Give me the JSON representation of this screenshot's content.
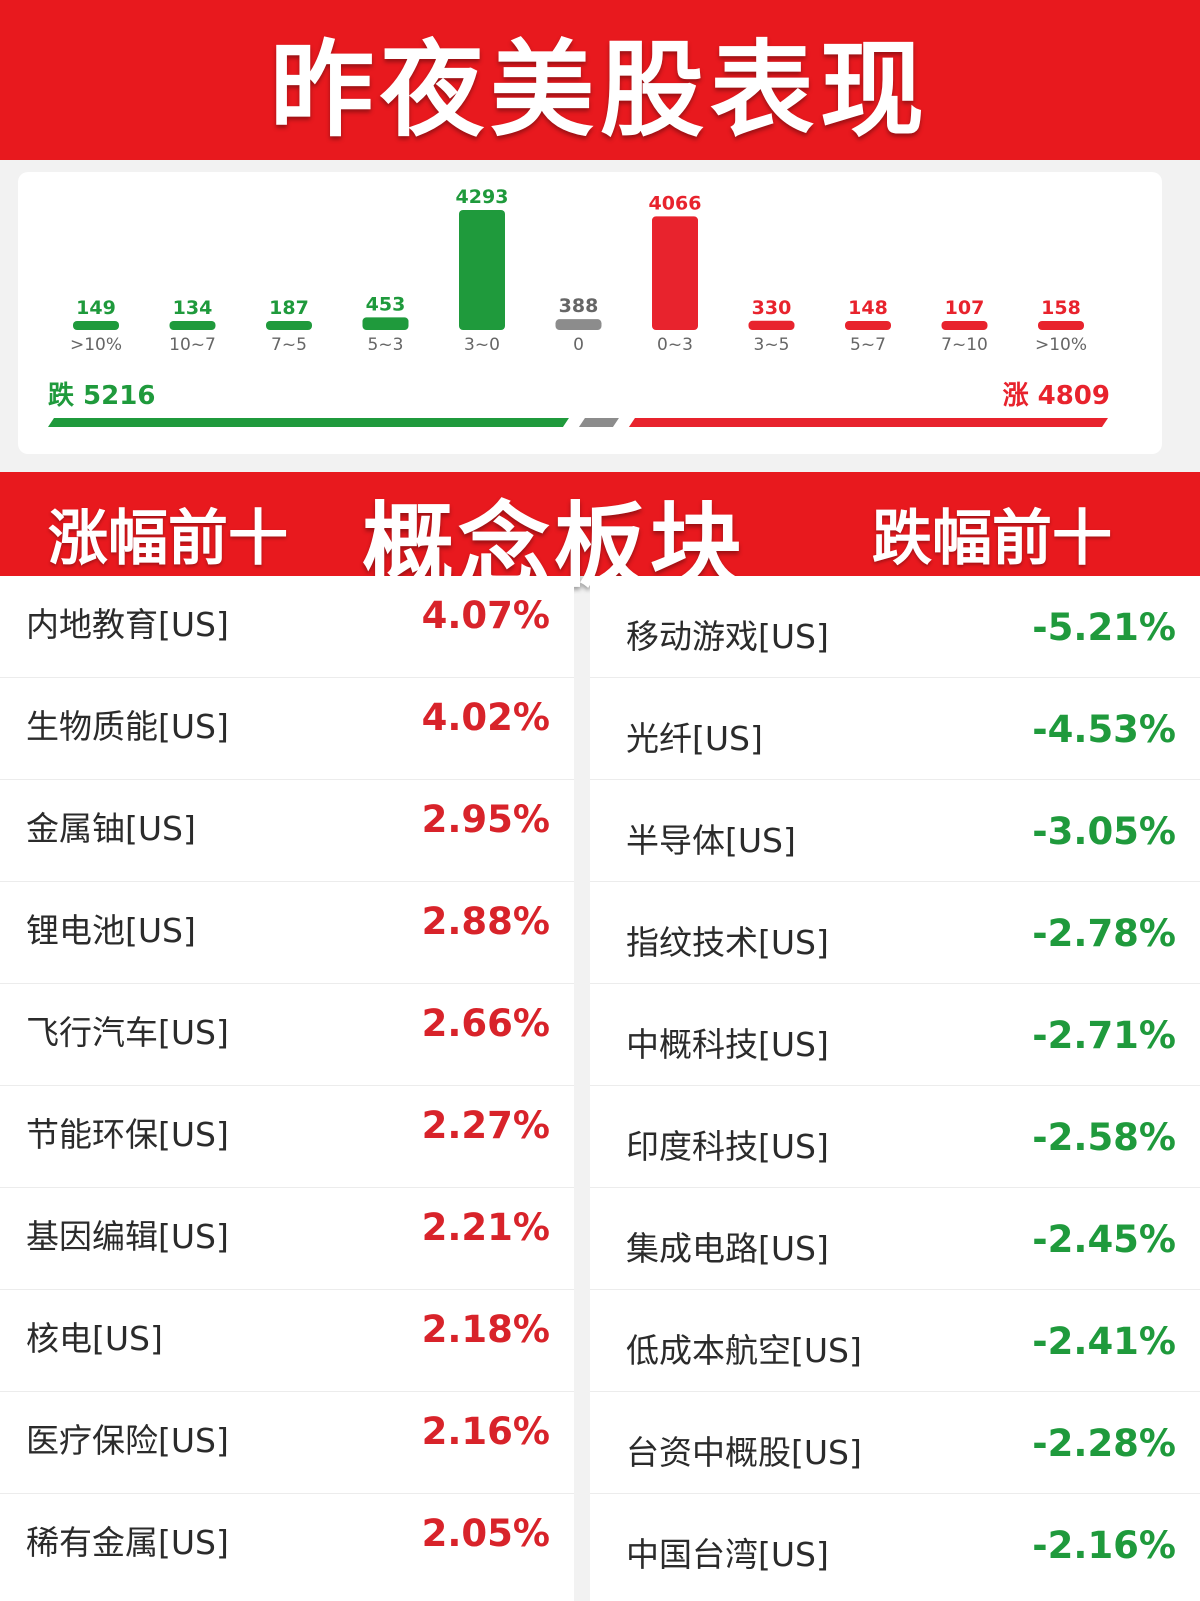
{
  "header": {
    "title": "昨夜美股表现"
  },
  "distribution": {
    "down_label": "跌 5216",
    "up_label": "涨 4809",
    "colors": {
      "down": "#1f9a3c",
      "flat": "#8c8c8c",
      "up": "#e8232d"
    }
  },
  "chart_data": {
    "type": "bar",
    "categories": [
      ">10%",
      "10~7",
      "7~5",
      "5~3",
      "3~0",
      "0",
      "0~3",
      "3~5",
      "5~7",
      "7~10",
      ">10%"
    ],
    "values": [
      149,
      134,
      187,
      453,
      4293,
      388,
      4066,
      330,
      148,
      107,
      158
    ],
    "bar_colors": [
      "#1f9a3c",
      "#1f9a3c",
      "#1f9a3c",
      "#1f9a3c",
      "#1f9a3c",
      "#8c8c8c",
      "#e8232d",
      "#e8232d",
      "#e8232d",
      "#e8232d",
      "#e8232d"
    ],
    "title": "",
    "xlabel": "",
    "ylabel": "",
    "grid": false
  },
  "band": {
    "left_title": "涨幅前十",
    "center_title": "概念板块",
    "right_title": "跌幅前十"
  },
  "gainers": [
    {
      "name": "内地教育[US]",
      "pct": "4.07%"
    },
    {
      "name": "生物质能[US]",
      "pct": "4.02%"
    },
    {
      "name": "金属铀[US]",
      "pct": "2.95%"
    },
    {
      "name": "锂电池[US]",
      "pct": "2.88%"
    },
    {
      "name": "飞行汽车[US]",
      "pct": "2.66%"
    },
    {
      "name": "节能环保[US]",
      "pct": "2.27%"
    },
    {
      "name": "基因编辑[US]",
      "pct": "2.21%"
    },
    {
      "name": "核电[US]",
      "pct": "2.18%"
    },
    {
      "name": "医疗保险[US]",
      "pct": "2.16%"
    },
    {
      "name": "稀有金属[US]",
      "pct": "2.05%"
    }
  ],
  "losers": [
    {
      "name": "移动游戏[US]",
      "pct": "-5.21%"
    },
    {
      "name": "光纤[US]",
      "pct": "-4.53%"
    },
    {
      "name": "半导体[US]",
      "pct": "-3.05%"
    },
    {
      "name": "指纹技术[US]",
      "pct": "-2.78%"
    },
    {
      "name": "中概科技[US]",
      "pct": "-2.71%"
    },
    {
      "name": "印度科技[US]",
      "pct": "-2.58%"
    },
    {
      "name": "集成电路[US]",
      "pct": "-2.45%"
    },
    {
      "name": "低成本航空[US]",
      "pct": "-2.41%"
    },
    {
      "name": "台资中概股[US]",
      "pct": "-2.28%"
    },
    {
      "name": "中国台湾[US]",
      "pct": "-2.16%"
    }
  ]
}
